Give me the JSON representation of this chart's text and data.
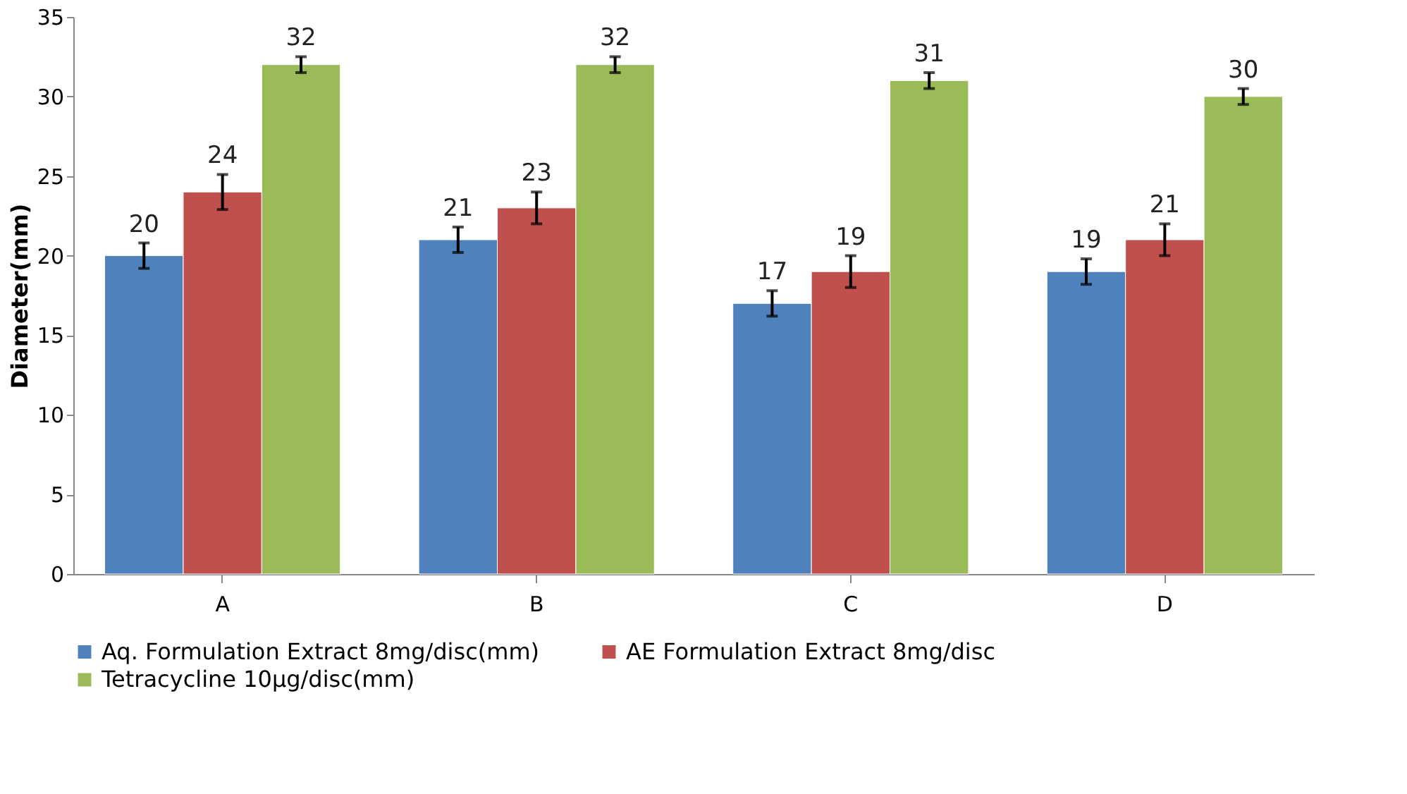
{
  "chart_data": {
    "type": "bar",
    "ylabel": "Diameter(mm)",
    "categories": [
      "A",
      "B",
      "C",
      "D"
    ],
    "series": [
      {
        "name": "Aq. Formulation Extract 8mg/disc(mm)",
        "color": "#4f81bd",
        "values": [
          20,
          21,
          17,
          19
        ],
        "errors": [
          0.8,
          0.8,
          0.8,
          0.8
        ]
      },
      {
        "name": "AE   Formulation Extract 8mg/disc",
        "color": "#c0504d",
        "values": [
          24,
          23,
          19,
          21
        ],
        "errors": [
          1.1,
          1.0,
          1.0,
          1.0
        ]
      },
      {
        "name": "Tetracycline 10µg/disc(mm)",
        "color": "#9bbb59",
        "values": [
          32,
          32,
          31,
          30
        ],
        "errors": [
          0.5,
          0.5,
          0.5,
          0.5
        ]
      }
    ],
    "ylim": [
      0,
      35
    ],
    "yticks": [
      0,
      5,
      10,
      15,
      20,
      25,
      30,
      35
    ],
    "grid": false,
    "legend": "bottom",
    "data_labels": true
  }
}
